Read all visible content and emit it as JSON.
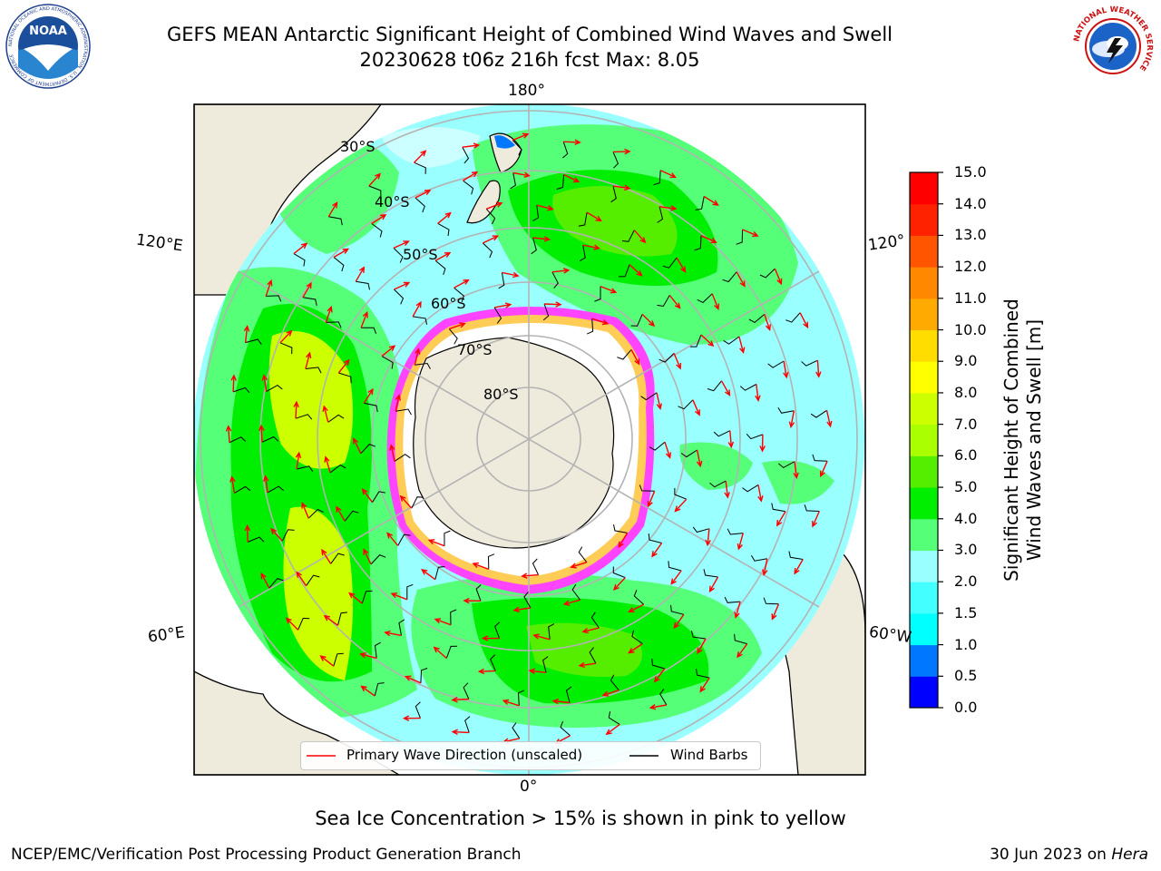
{
  "title": {
    "line1": "GEFS MEAN Antarctic Significant Height of Combined Wind Waves and Swell",
    "line2": "20230628 t06z 216h fcst   Max: 8.05"
  },
  "logos": {
    "left": "NOAA",
    "left_ring": "NATIONAL OCEANIC AND ATMOSPHERIC ADMINISTRATION · U.S. DEPARTMENT OF COMMERCE",
    "right_ring": "NATIONAL WEATHER SERVICE"
  },
  "map": {
    "meridians": {
      "top": "180°",
      "bottom": "0°",
      "upper_left": "120°E",
      "upper_right": "120°",
      "lower_left": "60°E",
      "lower_right": "60°W"
    },
    "latitudes": [
      "30°S",
      "40°S",
      "50°S",
      "60°S",
      "70°S",
      "80°S"
    ],
    "features": [
      "land-masses",
      "sea-ice-edge",
      "wind-barbs",
      "wave-direction-arrows"
    ]
  },
  "colorbar": {
    "label": "Significant Height of Combined Wind Waves and Swell [m]",
    "label_line1": "Significant Height of Combined",
    "label_line2": "Wind Waves and Swell [m]",
    "ticks": [
      "0.0",
      "0.5",
      "1.0",
      "1.5",
      "2.0",
      "3.0",
      "4.0",
      "5.0",
      "6.0",
      "7.0",
      "8.0",
      "9.0",
      "10.0",
      "11.0",
      "12.0",
      "13.0",
      "14.0",
      "15.0"
    ],
    "colors": [
      "#0000ff",
      "#0077ff",
      "#00ffff",
      "#44ffff",
      "#99ffff",
      "#55ff77",
      "#00ee00",
      "#55ee00",
      "#aaff00",
      "#ccff00",
      "#ffff00",
      "#ffdd00",
      "#ffaa00",
      "#ff8800",
      "#ff5500",
      "#ff2200",
      "#ff0000"
    ]
  },
  "legend": {
    "wave_label": "Primary Wave Direction (unscaled)",
    "wind_label": "Wind Barbs",
    "wave_color": "#ff0000",
    "wind_color": "#000000"
  },
  "note": "Sea Ice Concentration > 15% is shown in pink to yellow",
  "footer": {
    "left": "NCEP/EMC/Verification Post Processing Product Generation Branch",
    "right_prefix": "30 Jun 2023 on ",
    "right_machine": "Hera"
  }
}
